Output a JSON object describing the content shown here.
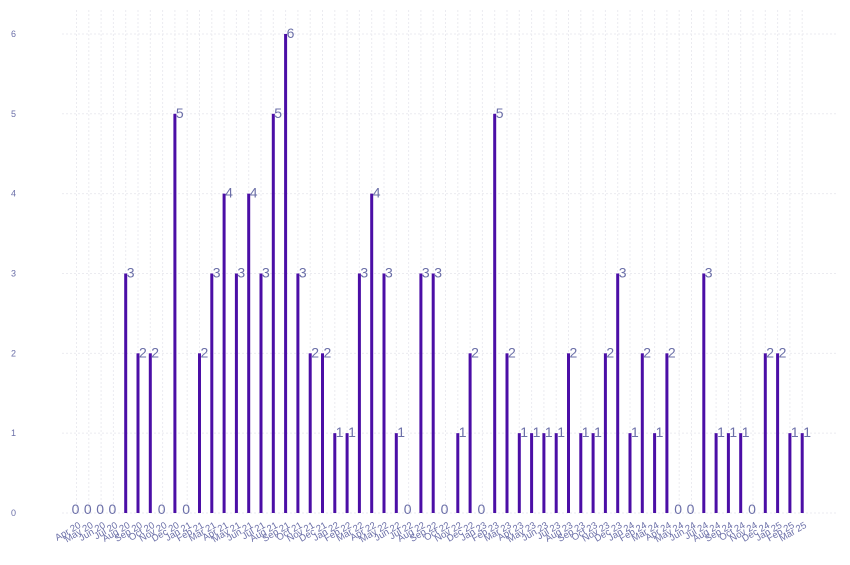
{
  "chart_data": {
    "type": "bar",
    "title": "",
    "xlabel": "",
    "ylabel": "",
    "ylim": [
      0,
      6.3
    ],
    "yticks": [
      0,
      1,
      2,
      3,
      4,
      5,
      6
    ],
    "grid": true,
    "legend": "none",
    "bar_color": "#4b0ea6",
    "label_color": "#6b6fa8",
    "categories": [
      "Apr 20",
      "May 20",
      "Jun 20",
      "Jul 20",
      "Aug 20",
      "Sep 20",
      "Oct 20",
      "Nov 20",
      "Dec 20",
      "Jan 21",
      "Feb 21",
      "Mar 21",
      "Apr 21",
      "May 21",
      "Jun 21",
      "Jul 21",
      "Aug 21",
      "Sep 21",
      "Oct 21",
      "Nov 21",
      "Dec 21",
      "Jan 22",
      "Feb 22",
      "Mar 22",
      "Apr 22",
      "May 22",
      "Jun 22",
      "Jul 22",
      "Aug 22",
      "Sep 22",
      "Oct 22",
      "Nov 22",
      "Dec 22",
      "Jan 23",
      "Feb 23",
      "Mar 23",
      "Apr 23",
      "May 23",
      "Jun 23",
      "Jul 23",
      "Aug 23",
      "Sep 23",
      "Oct 23",
      "Nov 23",
      "Dec 23",
      "Jan 24",
      "Feb 24",
      "Mar 24",
      "Apr 24",
      "May 24",
      "Jun 24",
      "Jul 24",
      "Aug 24",
      "Sep 24",
      "Oct 24",
      "Nov 24",
      "Dec 24",
      "Jan 25",
      "Feb 25",
      "Mar 25"
    ],
    "values": [
      0,
      0,
      0,
      0,
      3,
      2,
      2,
      0,
      5,
      0,
      2,
      3,
      4,
      3,
      4,
      3,
      5,
      6,
      3,
      2,
      2,
      1,
      1,
      3,
      4,
      3,
      1,
      0,
      3,
      3,
      0,
      1,
      2,
      0,
      5,
      2,
      1,
      1,
      1,
      1,
      2,
      1,
      1,
      2,
      3,
      1,
      2,
      1,
      2,
      0,
      0,
      3,
      1,
      1,
      1,
      0,
      2,
      2,
      1,
      1
    ]
  }
}
